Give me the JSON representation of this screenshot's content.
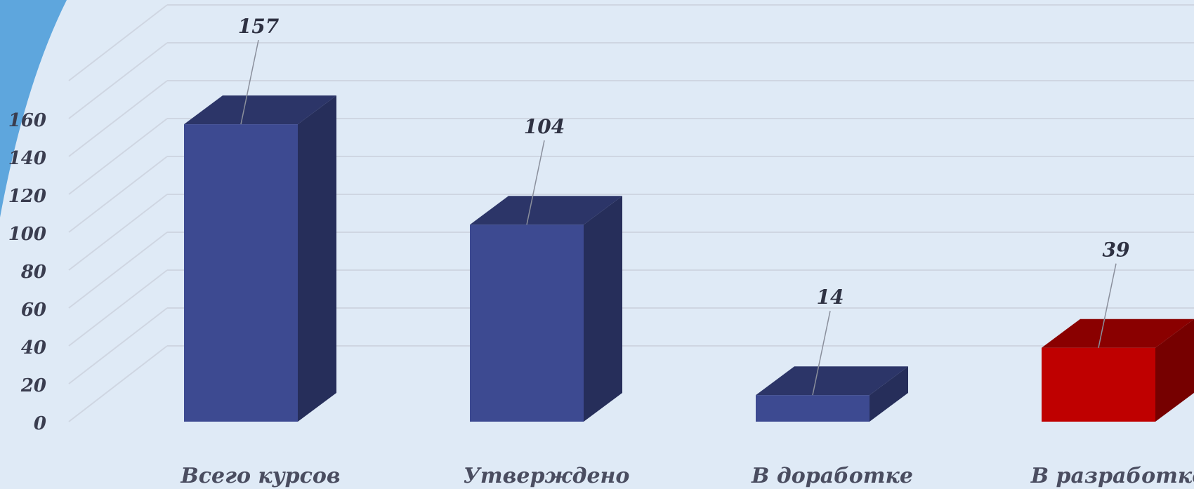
{
  "colors": {
    "background": "#dfeaf6",
    "corner_accent": "#5ea6dd",
    "bar_default": "#3d4a91",
    "bar_highlight": "#bf0000",
    "grid": "#cfd6e2",
    "leader": "#8a8f9c"
  },
  "chart_data": {
    "type": "bar",
    "style": "3d-column",
    "categories": [
      "Всего курсов",
      "Утверждено",
      "В доработке",
      "В разработке"
    ],
    "values": [
      157,
      104,
      14,
      39
    ],
    "data_labels": [
      "157",
      "104",
      "14",
      "39"
    ],
    "highlighted_index": 3,
    "ylim": [
      0,
      180
    ],
    "ytick_step": 20,
    "yticks": [
      "0",
      "20",
      "40",
      "60",
      "80",
      "100",
      "120",
      "140",
      "160"
    ],
    "grid": true,
    "legend": "none"
  }
}
